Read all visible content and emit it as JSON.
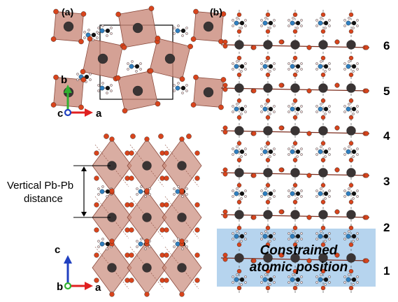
{
  "panels": {
    "a": {
      "label": "(a)"
    },
    "b": {
      "label": "(b)"
    }
  },
  "axes_top": {
    "b": "b",
    "c": "c",
    "a": "a"
  },
  "axes_bottom": {
    "c": "c",
    "b": "b",
    "a": "a"
  },
  "annotation": {
    "line1": "Vertical Pb-Pb",
    "line2": "distance"
  },
  "layers": [
    "1",
    "2",
    "3",
    "4",
    "5",
    "6"
  ],
  "constraint": {
    "line1": "Constrained",
    "line2": "atomic position"
  },
  "colors": {
    "octahedron": "#c98a7a",
    "octahedron_edge": "#8a4a3c",
    "pb": "#3a3434",
    "oxygen": "#d8441c",
    "nitrogen": "#2f7fc0",
    "carbon": "#111111",
    "hydrogen": "#f2dada",
    "constraint_box": "#a9cceb",
    "axis_a": "#e02020",
    "axis_b": "#30b030",
    "axis_c": "#2040c0"
  }
}
